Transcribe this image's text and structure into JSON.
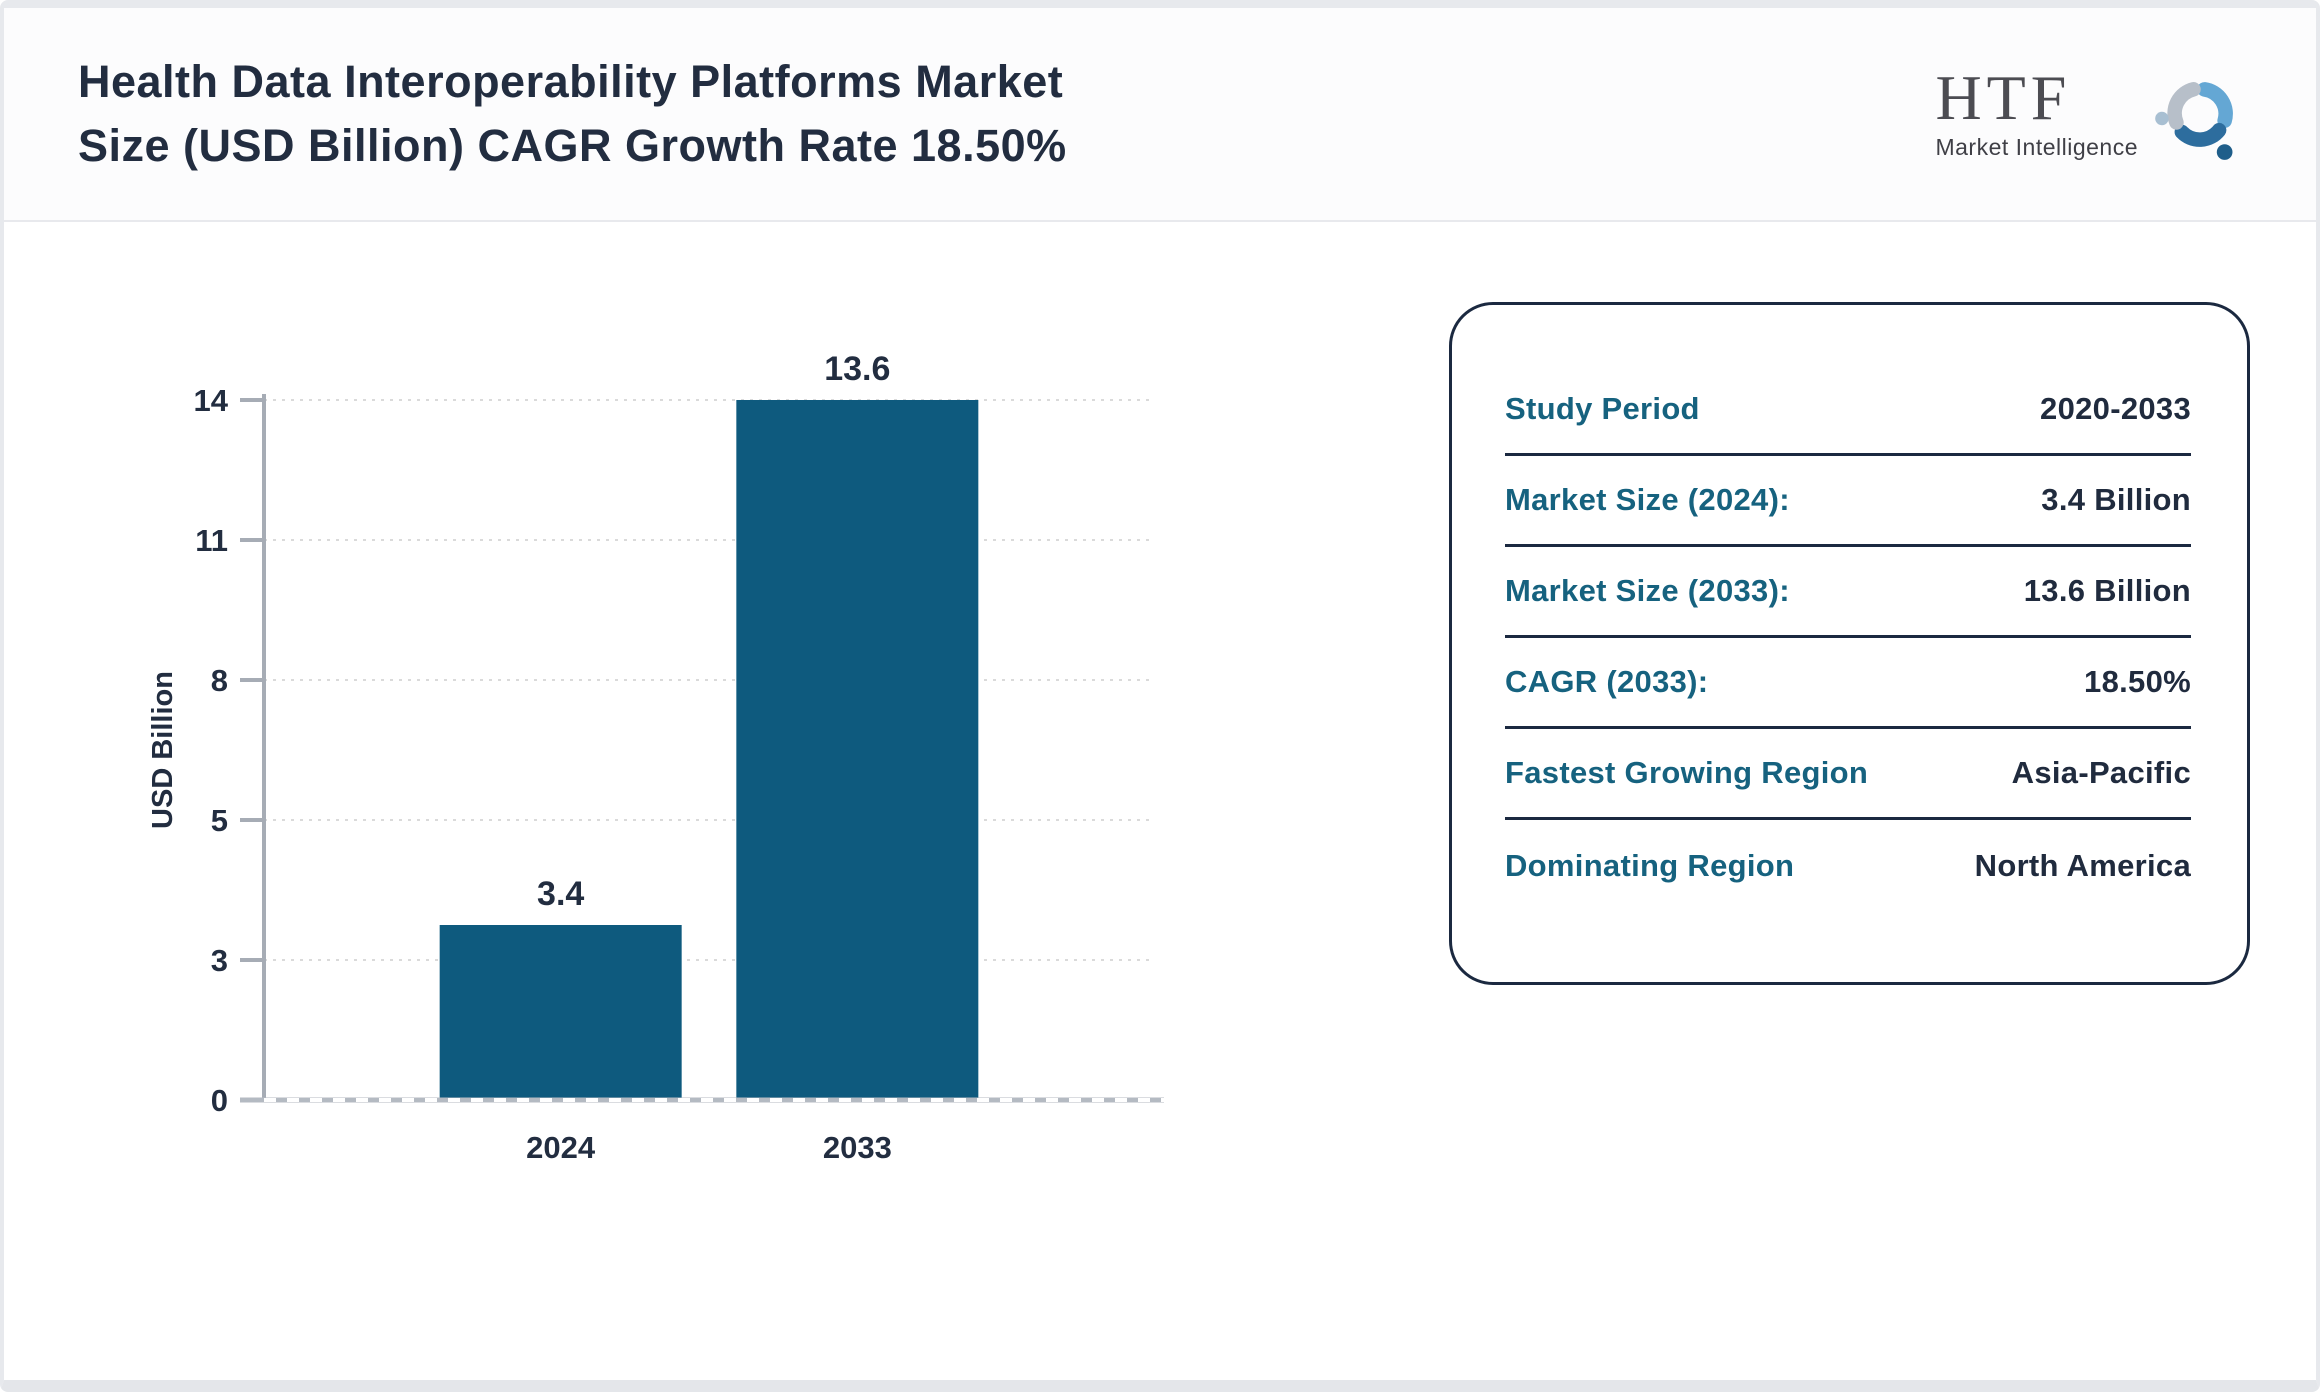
{
  "header": {
    "title_lines": [
      "Health Data Interoperability Platforms Market",
      "Size (USD Billion) CAGR Growth Rate 18.50%"
    ],
    "logo": {
      "name": "HTF",
      "subtitle": "Market Intelligence",
      "icon": "triskelion-people-swirl-icon",
      "icon_colors": {
        "light_blue": "#64a7d4",
        "dark_blue": "#2d6d9e",
        "gray": "#b7bfc9",
        "dot_light": "#a8bfd2",
        "dot_dark": "#1f5e8a"
      }
    }
  },
  "chart_data": {
    "type": "bar",
    "title": "Health Data Interoperability Platforms Market Size (USD Billion) CAGR Growth Rate 18.50%",
    "categories": [
      "2024",
      "2033"
    ],
    "values": [
      3.4,
      13.6
    ],
    "value_labels": [
      "3.4",
      "13.6"
    ],
    "xlabel": "",
    "ylabel": "USD Billion",
    "ylim": [
      0,
      14
    ],
    "ymax_value": 13.6,
    "ytick_labels": [
      "0",
      "3",
      "5",
      "8",
      "11",
      "14"
    ],
    "grid": "horizontal-dotted",
    "legend": "none",
    "bar_color": "#0e5a7e",
    "axis_color": "#a6acb5",
    "grid_color": "#dadada",
    "text_color": "#222d40"
  },
  "panel": {
    "rows": [
      {
        "label": "Study Period",
        "value": "2020-2033"
      },
      {
        "label": "Market Size (2024):",
        "value": "3.4 Billion"
      },
      {
        "label": "Market Size (2033):",
        "value": "13.6 Billion"
      },
      {
        "label": "CAGR (2033):",
        "value": "18.50%"
      },
      {
        "label": "Fastest Growing Region",
        "value": "Asia-Pacific"
      },
      {
        "label": "Dominating Region",
        "value": "North America"
      }
    ]
  },
  "colors": {
    "accent_teal": "#16627f",
    "dark_navy_text": "#202b3e",
    "bar": "#0e5a7e",
    "panel_border": "#1b2940"
  }
}
